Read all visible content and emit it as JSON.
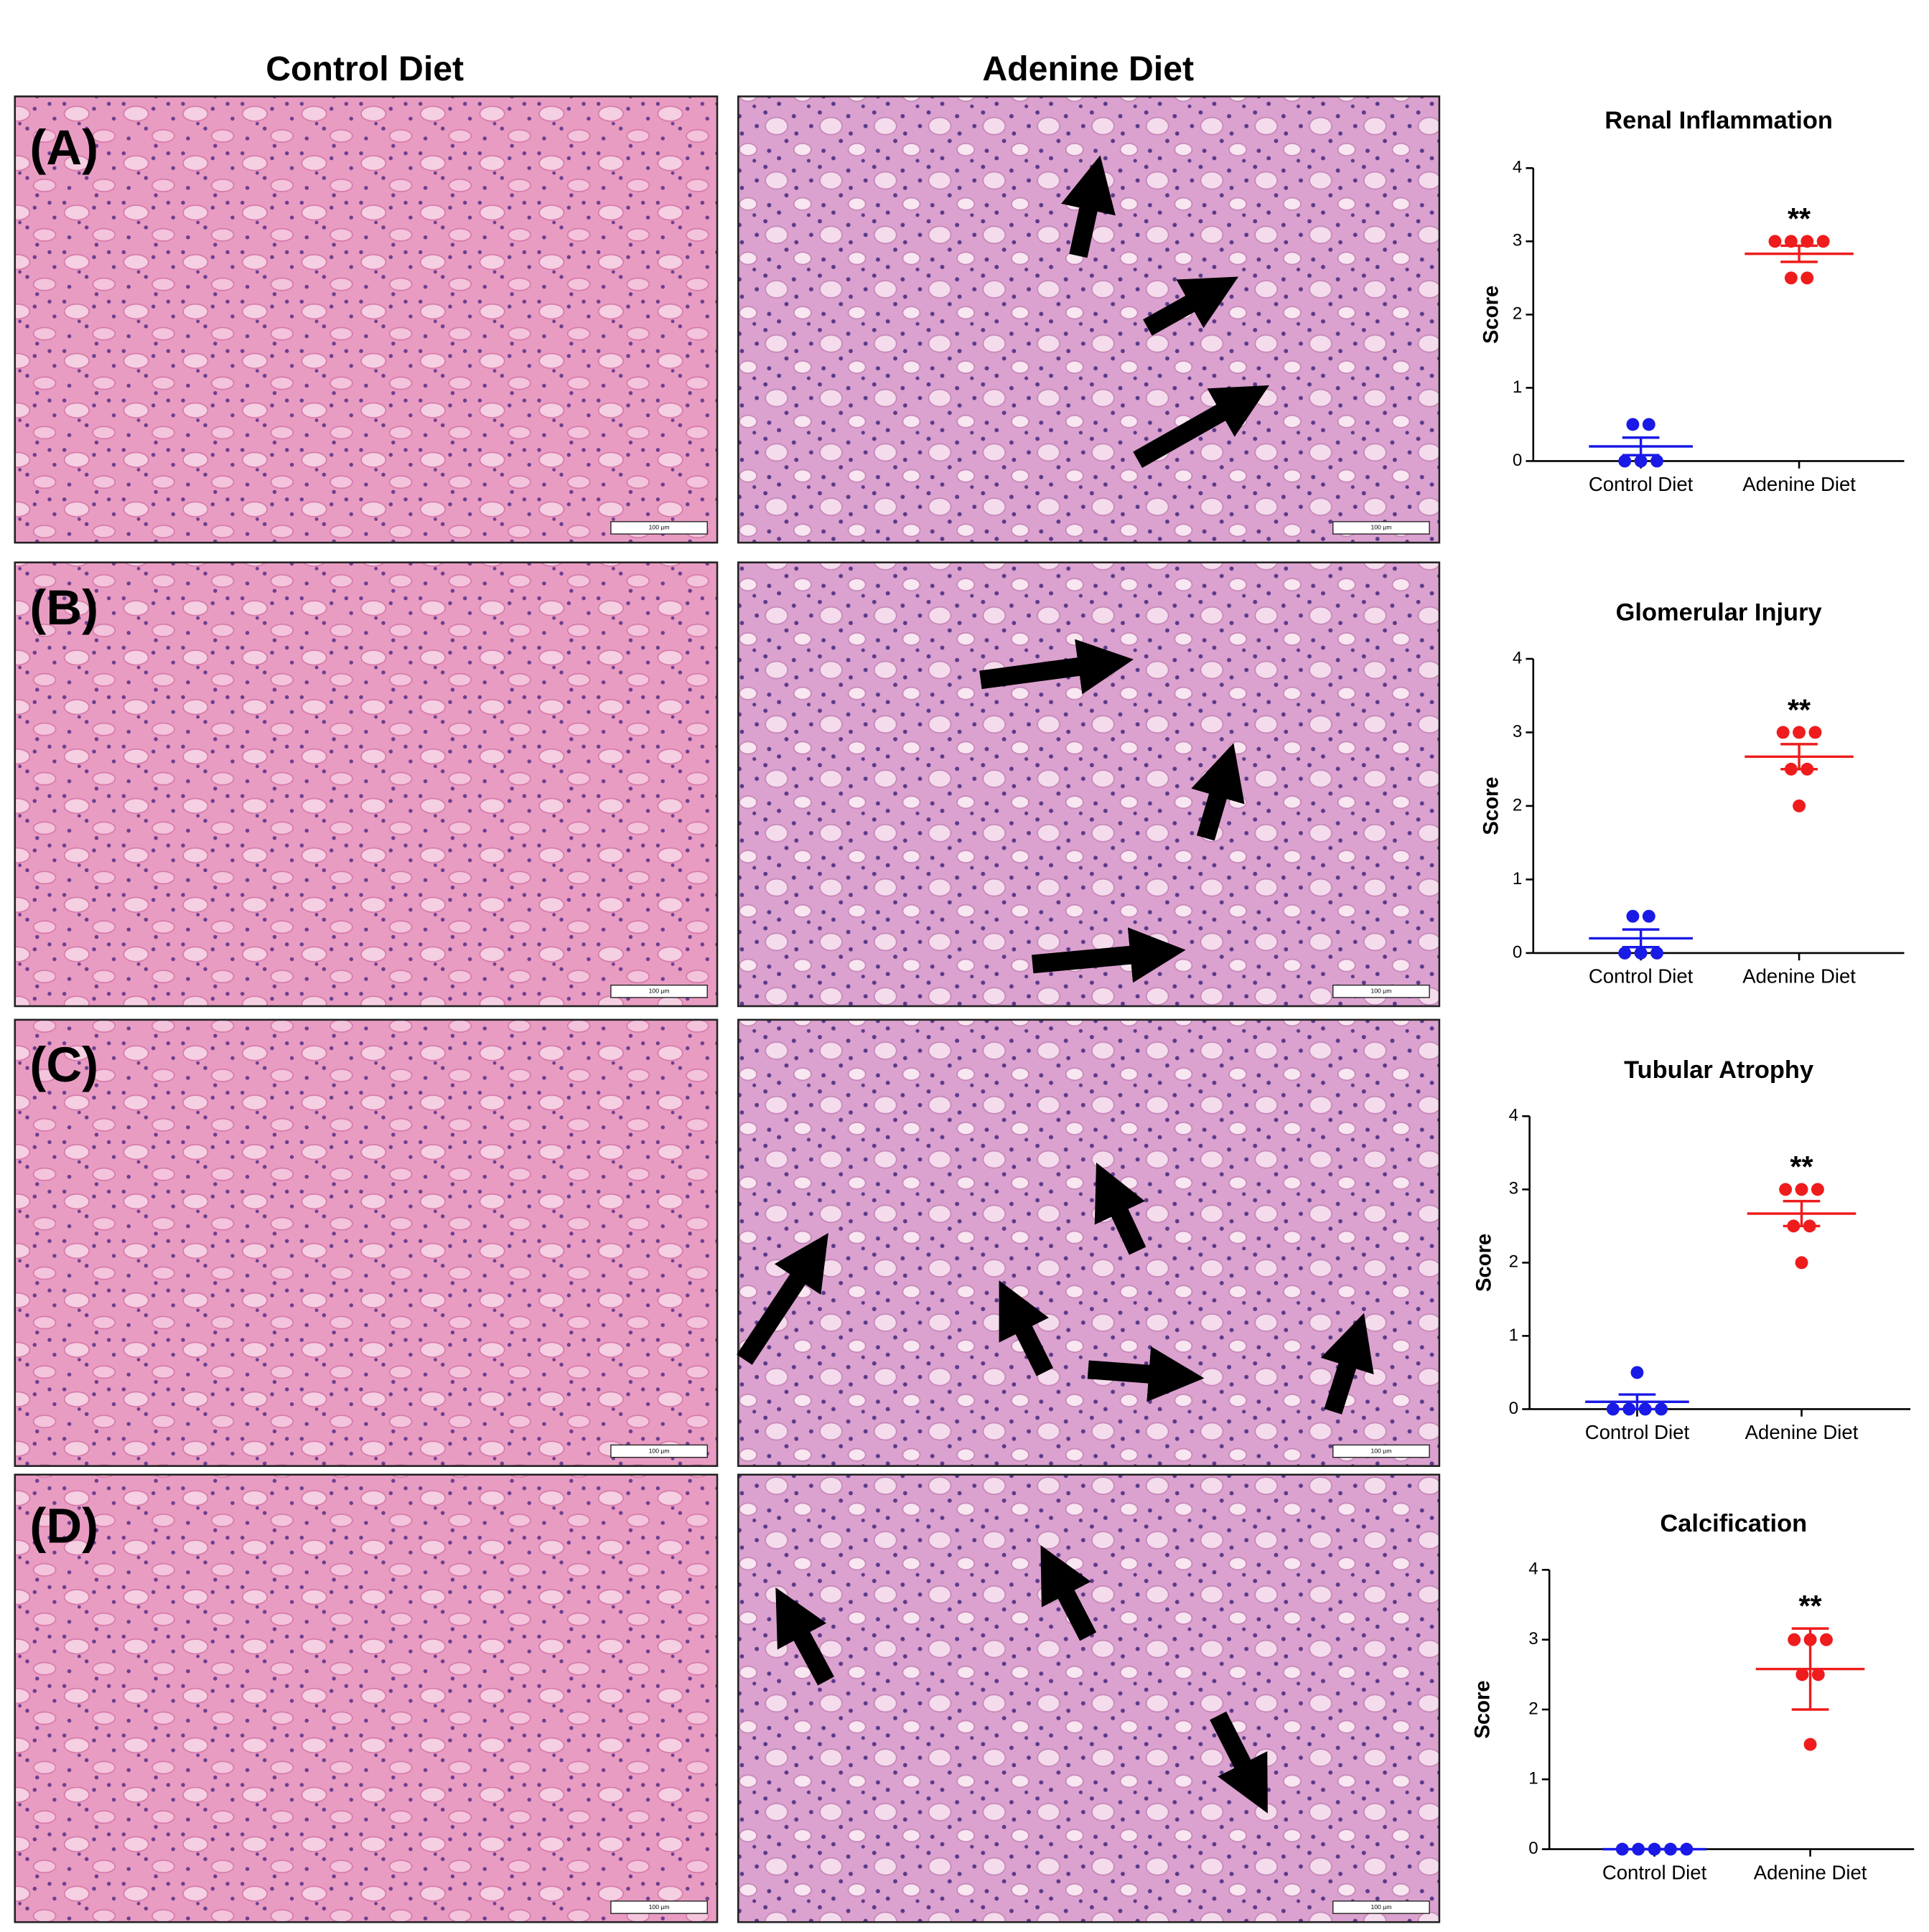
{
  "headers": [
    "Control Diet",
    "Adenine Diet"
  ],
  "panel_labels": [
    "(A)",
    "(B)",
    "(C)",
    "(D)"
  ],
  "scale_bar": "100 µm",
  "chart_data": [
    {
      "type": "strip",
      "title": "Renal Inflammation",
      "y_label": "Score",
      "categories": [
        "Control Diet",
        "Adenine Diet"
      ],
      "groups": [
        {
          "color": "#1a1ae6",
          "values": [
            0.5,
            0.5,
            0,
            0,
            0
          ],
          "mean": 0.2,
          "error": 0.12
        },
        {
          "color": "#ee1c1c",
          "values": [
            3,
            3,
            3,
            3,
            2.5,
            2.5
          ],
          "mean": 2.83,
          "error": 0.11
        }
      ],
      "annotation": "**",
      "ylim": [
        0,
        4
      ],
      "yticks": [
        0,
        1,
        2,
        3,
        4
      ]
    },
    {
      "type": "strip",
      "title": "Glomerular Injury",
      "y_label": "Score",
      "categories": [
        "Control Diet",
        "Adenine Diet"
      ],
      "groups": [
        {
          "color": "#1a1ae6",
          "values": [
            0.5,
            0.5,
            0,
            0,
            0
          ],
          "mean": 0.2,
          "error": 0.12
        },
        {
          "color": "#ee1c1c",
          "values": [
            3,
            3,
            3,
            2.5,
            2.5,
            2
          ],
          "mean": 2.67,
          "error": 0.17
        }
      ],
      "annotation": "**",
      "ylim": [
        0,
        4
      ],
      "yticks": [
        0,
        1,
        2,
        3,
        4
      ]
    },
    {
      "type": "strip",
      "title": "Tubular Atrophy",
      "y_label": "Score",
      "categories": [
        "Control Diet",
        "Adenine Diet"
      ],
      "groups": [
        {
          "color": "#1a1ae6",
          "values": [
            0.5,
            0,
            0,
            0,
            0
          ],
          "mean": 0.1,
          "error": 0.1
        },
        {
          "color": "#ee1c1c",
          "values": [
            3,
            3,
            3,
            2.5,
            2.5,
            2
          ],
          "mean": 2.67,
          "error": 0.17
        }
      ],
      "annotation": "**",
      "ylim": [
        0,
        4
      ],
      "yticks": [
        0,
        1,
        2,
        3,
        4
      ]
    },
    {
      "type": "strip",
      "title": "Calcification",
      "y_label": "Score",
      "categories": [
        "Control Diet",
        "Adenine Diet"
      ],
      "groups": [
        {
          "color": "#1a1ae6",
          "values": [
            0,
            0,
            0,
            0,
            0
          ],
          "mean": 0,
          "error": 0
        },
        {
          "color": "#ee1c1c",
          "values": [
            3,
            3,
            3,
            2.5,
            2.5,
            1.5
          ],
          "mean": 2.58,
          "error": 0.58
        }
      ],
      "annotation": "**",
      "ylim": [
        0,
        4
      ],
      "yticks": [
        0,
        1,
        2,
        3,
        4
      ]
    }
  ]
}
